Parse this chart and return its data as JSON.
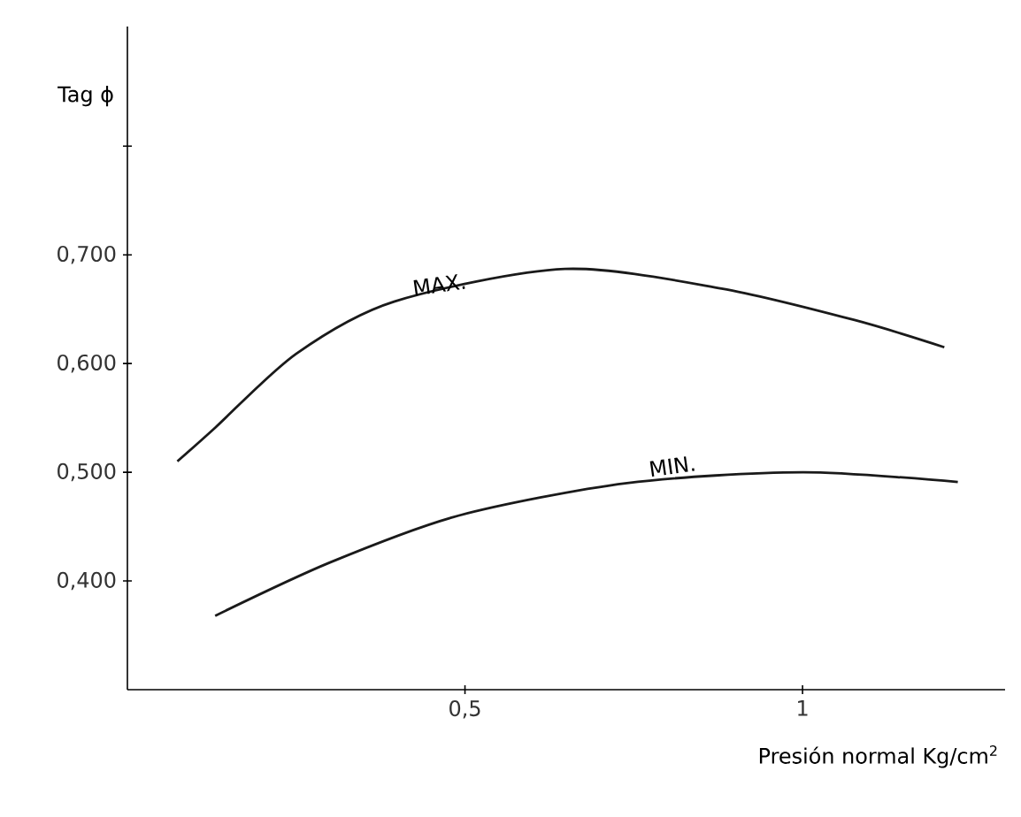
{
  "chart_data": {
    "type": "line",
    "xlabel": "Presión normal Kg/cm$^{2}$",
    "ylabel": "Tag ϕ",
    "xlim": [
      0,
      1.3
    ],
    "ylim": [
      0.3,
      0.91
    ],
    "xticks": [
      {
        "value": 0.5,
        "label": "0,5"
      },
      1
    ],
    "yticks": [
      {
        "value": 0.4,
        "label": "0,400"
      },
      {
        "value": 0.5,
        "label": "0,500"
      },
      {
        "value": 0.6,
        "label": "0,600"
      },
      {
        "value": 0.7,
        "label": "0,700"
      },
      {
        "value": 0.8,
        "label": null
      }
    ],
    "grid": false,
    "legend": false,
    "marker": "none",
    "line_style": "solid",
    "series": [
      {
        "name": "MAX.",
        "color": "#1a1a1a",
        "x": [
          0.074,
          0.13,
          0.25,
          0.395,
          0.648,
          0.88,
          1.077,
          1.21
        ],
        "values": [
          0.51,
          0.541,
          0.609,
          0.657,
          0.687,
          0.669,
          0.64,
          0.615
        ]
      },
      {
        "name": "MIN.",
        "color": "#1a1a1a",
        "x": [
          0.13,
          0.3,
          0.49,
          0.74,
          1.0,
          1.23
        ],
        "values": [
          0.368,
          0.417,
          0.46,
          0.49,
          0.5,
          0.491
        ]
      }
    ]
  }
}
